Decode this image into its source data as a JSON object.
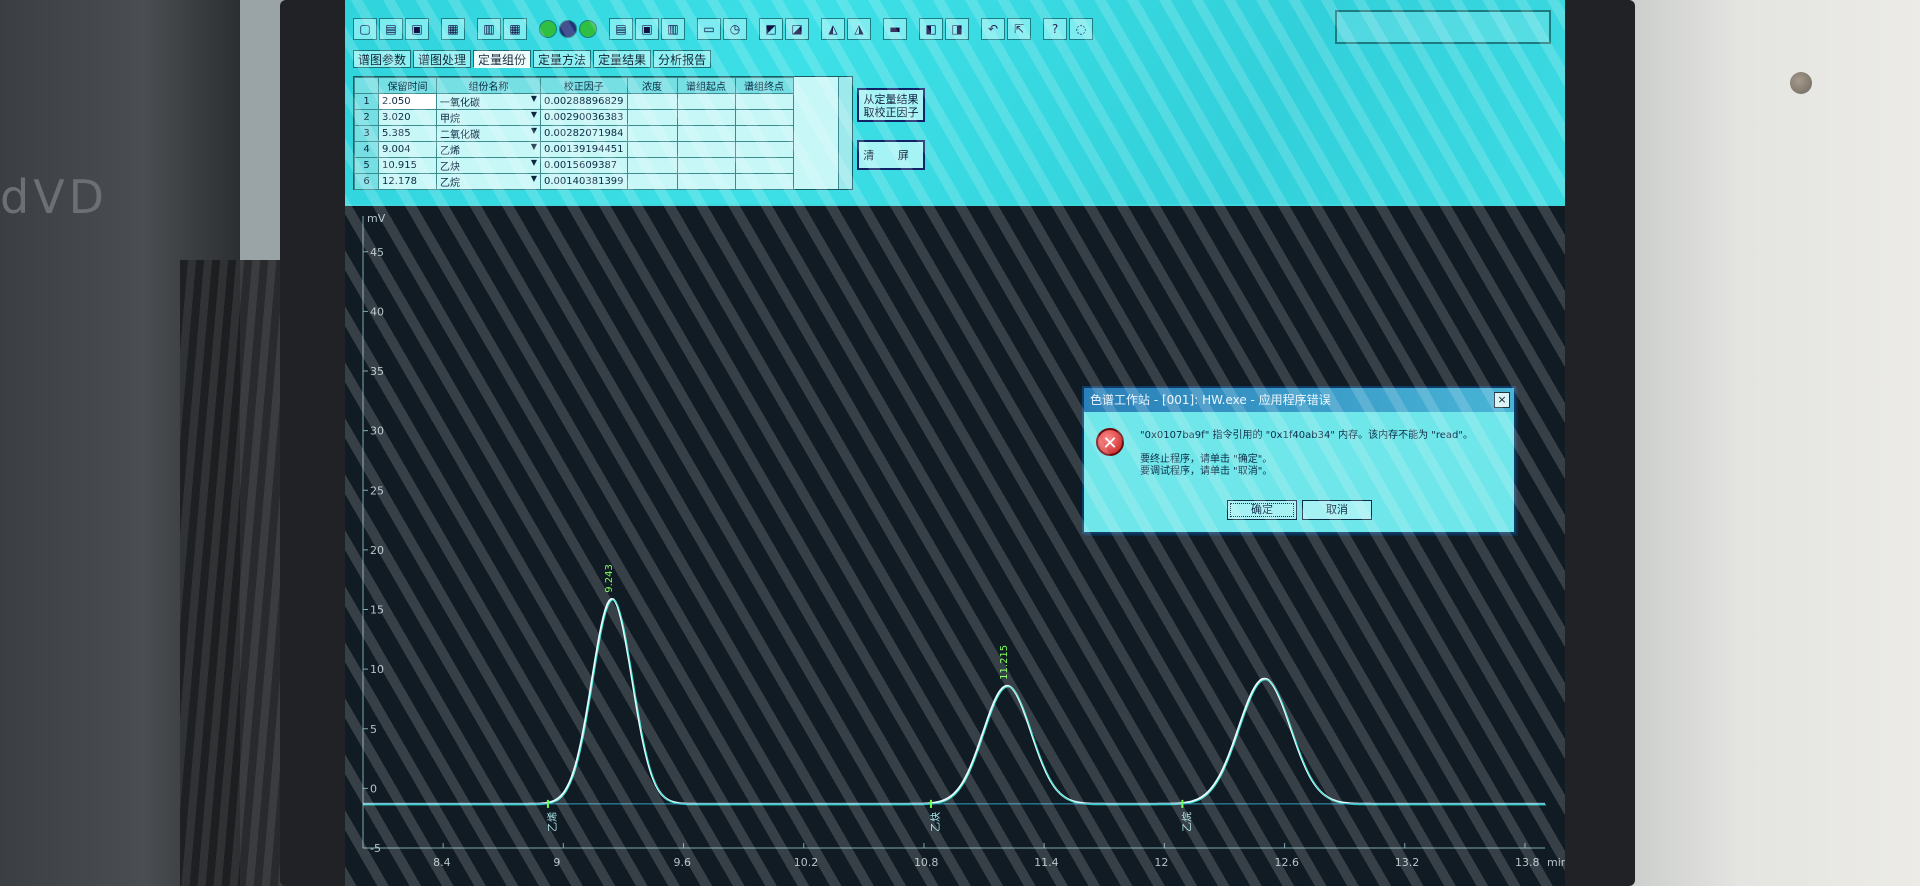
{
  "tabs": [
    {
      "label": "谱图参数"
    },
    {
      "label": "谱图处理"
    },
    {
      "label": "定量组份"
    },
    {
      "label": "定量方法"
    },
    {
      "label": "定量结果"
    },
    {
      "label": "分析报告"
    }
  ],
  "active_tab": "定量组份",
  "component_table": {
    "columns": [
      "",
      "保留时间",
      "组份名称",
      "",
      "校正因子",
      "浓度",
      "谱组起点",
      "谱组终点"
    ],
    "rows": [
      {
        "index": "1",
        "retention_time": "2.050",
        "name": "一氧化碳",
        "factor": "0.00288896829"
      },
      {
        "index": "2",
        "retention_time": "3.020",
        "name": "甲烷",
        "factor": "0.00290036383"
      },
      {
        "index": "3",
        "retention_time": "5.385",
        "name": "二氧化碳",
        "factor": "0.00282071984"
      },
      {
        "index": "4",
        "retention_time": "9.004",
        "name": "乙烯",
        "factor": "0.00139194451"
      },
      {
        "index": "5",
        "retention_time": "10.915",
        "name": "乙炔",
        "factor": "0.0015609387"
      },
      {
        "index": "6",
        "retention_time": "12.178",
        "name": "乙烷",
        "factor": "0.00140381399"
      }
    ]
  },
  "side_buttons": {
    "from_results": "从定量结果取校正因子",
    "clear": "清 屏"
  },
  "dialog": {
    "title": "色谱工作站 - [001]: HW.exe - 应用程序错误",
    "line1": "\"0x0107ba9f\" 指令引用的 \"0x1f40ab34\" 内存。该内存不能为 \"read\"。",
    "line2": "要终止程序，请单击 \"确定\"。",
    "line3": "要调试程序，请单击 \"取消\"。",
    "ok_label": "确定",
    "cancel_label": "取消",
    "icon": "error-x-icon"
  },
  "chart_data": {
    "type": "line",
    "x_unit": "min",
    "y_unit": "mV",
    "xlim": [
      8.0,
      13.9
    ],
    "ylim": [
      -5,
      48
    ],
    "x_ticks": [
      "8.4",
      "9",
      "9.6",
      "10.2",
      "10.8",
      "11.4",
      "12",
      "12.6",
      "13.2",
      "13.8"
    ],
    "y_ticks": [
      "-5",
      "0",
      "5",
      "10",
      "15",
      "20",
      "25",
      "30",
      "35",
      "40",
      "45"
    ],
    "baseline": -1.3,
    "peaks": [
      {
        "label": "9.243",
        "apex_x": 9.243,
        "height": 17.2,
        "sigma": 0.1
      },
      {
        "label": "11.215",
        "apex_x": 11.215,
        "height": 9.9,
        "sigma": 0.12
      },
      {
        "label": "",
        "apex_x": 12.5,
        "height": 10.5,
        "sigma": 0.13
      }
    ],
    "peak_start_labels": [
      "乙烯",
      "乙炔",
      "乙烷"
    ]
  }
}
